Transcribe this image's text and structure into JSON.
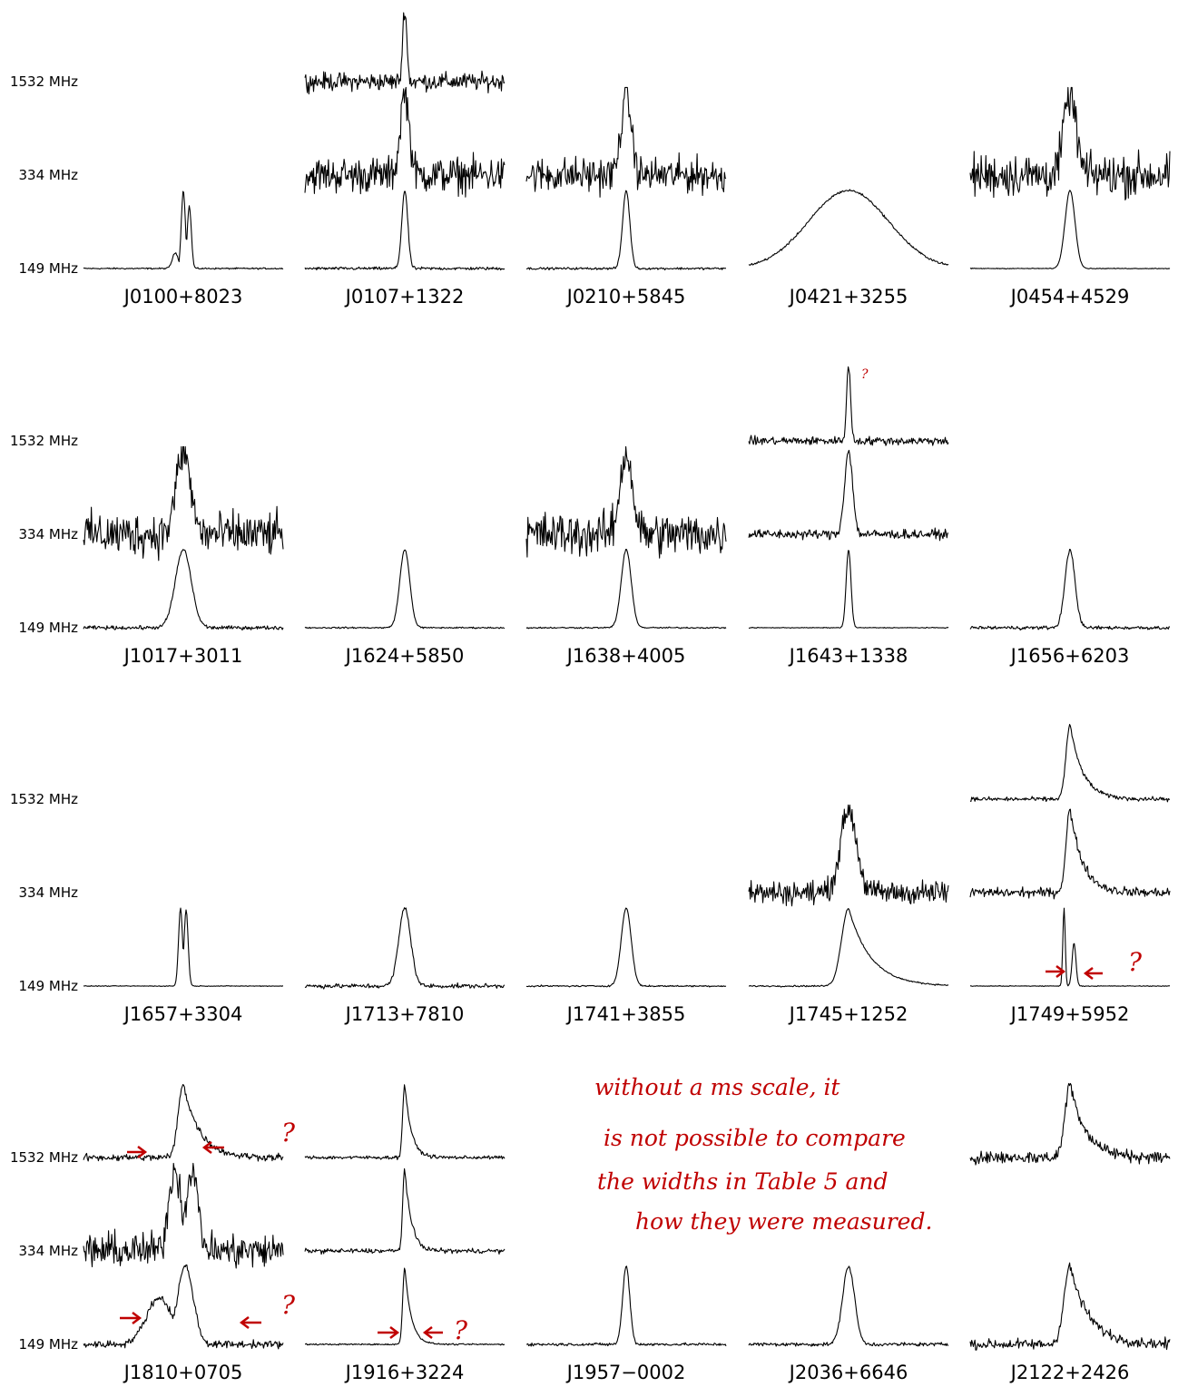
{
  "chart_data": {
    "type": "line",
    "frequencies": [
      "1532 MHz",
      "334 MHz",
      "149 MHz"
    ],
    "grid": false,
    "legend": "none",
    "pulsars": [
      {
        "name": "J0100+8023",
        "profiles": [
          {
            "band": "149 MHz",
            "width": 0.01,
            "shape": "multi",
            "noise": 0.02
          }
        ]
      },
      {
        "name": "J0107+1322",
        "profiles": [
          {
            "band": "1532 MHz",
            "width": 0.01,
            "shape": "single",
            "noise": 0.25
          },
          {
            "band": "334 MHz",
            "width": 0.022,
            "shape": "single",
            "noise": 0.45
          },
          {
            "band": "149 MHz",
            "width": 0.015,
            "shape": "single",
            "noise": 0.04
          }
        ]
      },
      {
        "name": "J0210+5845",
        "profiles": [
          {
            "band": "334 MHz",
            "width": 0.025,
            "shape": "single",
            "noise": 0.45
          },
          {
            "band": "149 MHz",
            "width": 0.018,
            "shape": "single",
            "noise": 0.03
          }
        ]
      },
      {
        "name": "J0421+3255",
        "profiles": [
          {
            "band": "149 MHz",
            "width": 0.2,
            "shape": "single",
            "noise": 0.03
          }
        ]
      },
      {
        "name": "J0454+4529",
        "profiles": [
          {
            "band": "334 MHz",
            "width": 0.03,
            "shape": "single",
            "noise": 0.55
          },
          {
            "band": "149 MHz",
            "width": 0.025,
            "shape": "single",
            "noise": 0.01
          }
        ]
      },
      {
        "name": "J1017+3011",
        "profiles": [
          {
            "band": "334 MHz",
            "width": 0.035,
            "shape": "single",
            "noise": 0.55
          },
          {
            "band": "149 MHz",
            "width": 0.04,
            "shape": "single",
            "noise": 0.05
          }
        ]
      },
      {
        "name": "J1624+5850",
        "profiles": [
          {
            "band": "149 MHz",
            "width": 0.025,
            "shape": "single",
            "noise": 0.02
          }
        ]
      },
      {
        "name": "J1638+4005",
        "profiles": [
          {
            "band": "334 MHz",
            "width": 0.03,
            "shape": "single",
            "noise": 0.55
          },
          {
            "band": "149 MHz",
            "width": 0.025,
            "shape": "single",
            "noise": 0.02
          }
        ]
      },
      {
        "name": "J1643+1338",
        "profiles": [
          {
            "band": "1532 MHz",
            "width": 0.01,
            "shape": "single",
            "noise": 0.12
          },
          {
            "band": "334 MHz",
            "width": 0.02,
            "shape": "single",
            "noise": 0.12
          },
          {
            "band": "149 MHz",
            "width": 0.012,
            "shape": "single",
            "noise": 0.01
          }
        ]
      },
      {
        "name": "J1656+6203",
        "profiles": [
          {
            "band": "149 MHz",
            "width": 0.025,
            "shape": "single",
            "noise": 0.05
          }
        ]
      },
      {
        "name": "J1657+3304",
        "profiles": [
          {
            "band": "149 MHz",
            "width": 0.01,
            "shape": "double",
            "noise": 0.01
          }
        ]
      },
      {
        "name": "J1713+7810",
        "profiles": [
          {
            "band": "149 MHz",
            "width": 0.03,
            "shape": "single",
            "noise": 0.06
          }
        ]
      },
      {
        "name": "J1741+3855",
        "profiles": [
          {
            "band": "149 MHz",
            "width": 0.025,
            "shape": "single",
            "noise": 0.02
          }
        ]
      },
      {
        "name": "J1745+1252",
        "profiles": [
          {
            "band": "334 MHz",
            "width": 0.04,
            "shape": "single",
            "noise": 0.3
          },
          {
            "band": "149 MHz",
            "width": 0.035,
            "shape": "tail",
            "noise": 0.02
          }
        ]
      },
      {
        "name": "J1749+5952",
        "profiles": [
          {
            "band": "1532 MHz",
            "width": 0.02,
            "shape": "tail",
            "noise": 0.06
          },
          {
            "band": "334 MHz",
            "width": 0.02,
            "shape": "tail",
            "noise": 0.12
          },
          {
            "band": "149 MHz",
            "width": 0.006,
            "shape": "triple",
            "noise": 0.01
          }
        ]
      },
      {
        "name": "J1810+0705",
        "profiles": [
          {
            "band": "1532 MHz",
            "width": 0.025,
            "shape": "tail",
            "noise": 0.1
          },
          {
            "band": "334 MHz",
            "width": 0.03,
            "shape": "double",
            "noise": 0.45
          },
          {
            "band": "149 MHz",
            "width": 0.04,
            "shape": "broad-double",
            "noise": 0.1
          }
        ]
      },
      {
        "name": "J1916+3224",
        "profiles": [
          {
            "band": "1532 MHz",
            "width": 0.01,
            "shape": "tail",
            "noise": 0.05
          },
          {
            "band": "334 MHz",
            "width": 0.01,
            "shape": "tail",
            "noise": 0.06
          },
          {
            "band": "149 MHz",
            "width": 0.01,
            "shape": "tail",
            "noise": 0.02
          }
        ]
      },
      {
        "name": "J1957−0002",
        "profiles": [
          {
            "band": "149 MHz",
            "width": 0.018,
            "shape": "single",
            "noise": 0.04
          }
        ]
      },
      {
        "name": "J2036+6646",
        "profiles": [
          {
            "band": "149 MHz",
            "width": 0.03,
            "shape": "single",
            "noise": 0.05
          }
        ]
      },
      {
        "name": "J2122+2426",
        "profiles": [
          {
            "band": "1532 MHz",
            "width": 0.025,
            "shape": "tail",
            "noise": 0.18
          },
          {
            "band": "149 MHz",
            "width": 0.03,
            "shape": "tail",
            "noise": 0.14
          }
        ]
      }
    ],
    "annotations": {
      "color": "#c00000",
      "note_lines": [
        "without a ms scale, it",
        "is not possible to compare",
        "the widths in Table 5 and",
        "how they were measured."
      ],
      "marks": [
        "? ",
        "?",
        "?",
        "?",
        "?",
        "?"
      ]
    }
  }
}
